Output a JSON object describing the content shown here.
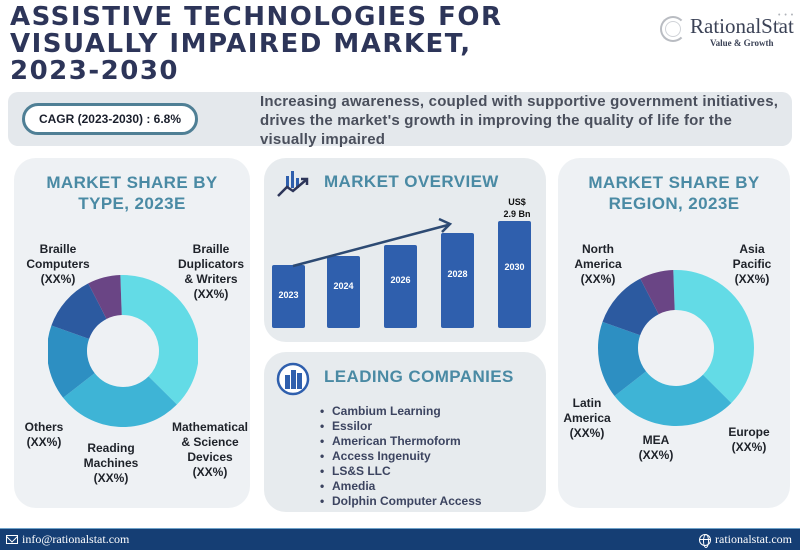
{
  "header": {
    "title_lines": [
      "ASSISTIVE TECHNOLOGIES FOR",
      "VISUALLY IMPAIRED MARKET,",
      "2023-2030"
    ]
  },
  "logo": {
    "name": "RationalStat",
    "tagline": "Value & Growth"
  },
  "cagr": {
    "label": "CAGR (2023-2030) : 6.8%",
    "description": "Increasing awareness, coupled with supportive government initiatives, drives the market's growth in improving the quality of life for the visually impaired"
  },
  "type_panel": {
    "title_lines": [
      "MARKET SHARE BY",
      "TYPE, 2023E"
    ],
    "segments": [
      {
        "label_lines": [
          "Braille",
          "Computers",
          "(XX%)"
        ],
        "color": "#63dbe6"
      },
      {
        "label_lines": [
          "Braille",
          "Duplicators",
          "& Writers",
          "(XX%)"
        ],
        "color": "#3eb4d6"
      },
      {
        "label_lines": [
          "Mathematical",
          "& Science",
          "Devices",
          "(XX%)"
        ],
        "color": "#2d8fc2"
      },
      {
        "label_lines": [
          "Reading",
          "Machines",
          "(XX%)"
        ],
        "color": "#2c5aa0"
      },
      {
        "label_lines": [
          "Others",
          "(XX%)"
        ],
        "color": "#6a4585"
      }
    ]
  },
  "overview_panel": {
    "title": "MARKET OVERVIEW",
    "value_lines": [
      "US$",
      "2.9 Bn"
    ],
    "bars": [
      {
        "year": "2023"
      },
      {
        "year": "2024"
      },
      {
        "year": "2026"
      },
      {
        "year": "2028"
      },
      {
        "year": "2030"
      }
    ],
    "bar_color": "#2f5fad"
  },
  "companies_panel": {
    "title": "LEADING COMPANIES",
    "items": [
      "Cambium Learning",
      "Essilor",
      "American Thermoform",
      "Access Ingenuity",
      "LS&S LLC",
      "Amedia",
      "Dolphin Computer Access"
    ]
  },
  "region_panel": {
    "title_lines": [
      "MARKET SHARE BY",
      "REGION, 2023E"
    ],
    "segments": [
      {
        "label_lines": [
          "North",
          "America",
          "(XX%)"
        ],
        "color": "#63dbe6"
      },
      {
        "label_lines": [
          "Asia",
          "Pacific",
          "(XX%)"
        ],
        "color": "#3eb4d6"
      },
      {
        "label_lines": [
          "Europe",
          "(XX%)"
        ],
        "color": "#2d8fc2"
      },
      {
        "label_lines": [
          "MEA",
          "(XX%)"
        ],
        "color": "#2c5aa0"
      },
      {
        "label_lines": [
          "Latin",
          "America",
          "(XX%)"
        ],
        "color": "#6a4585"
      }
    ]
  },
  "footer": {
    "email": "info@rationalstat.com",
    "website": "rationalstat.com"
  },
  "chart_data": [
    {
      "type": "pie",
      "title": "MARKET SHARE BY TYPE, 2023E",
      "categories": [
        "Braille Computers",
        "Braille Duplicators & Writers",
        "Mathematical & Science Devices",
        "Reading Machines",
        "Others"
      ],
      "values": [
        38,
        27,
        16,
        12,
        7
      ],
      "value_labels": [
        "XX%",
        "XX%",
        "XX%",
        "XX%",
        "XX%"
      ],
      "donut": true
    },
    {
      "type": "bar",
      "title": "MARKET OVERVIEW",
      "categories": [
        "2023",
        "2024",
        "2026",
        "2028",
        "2030"
      ],
      "values": [
        null,
        null,
        null,
        null,
        2.9
      ],
      "relative_heights": [
        0.59,
        0.67,
        0.76,
        0.86,
        1.0
      ],
      "annotations": [
        "US$ 2.9 Bn"
      ],
      "ylabel": "US$ Bn",
      "trend_arrow": true
    },
    {
      "type": "pie",
      "title": "MARKET SHARE BY REGION, 2023E",
      "categories": [
        "North America",
        "Asia Pacific",
        "Europe",
        "MEA",
        "Latin America"
      ],
      "values": [
        38,
        27,
        16,
        12,
        7
      ],
      "value_labels": [
        "XX%",
        "XX%",
        "XX%",
        "XX%",
        "XX%"
      ],
      "donut": true
    }
  ]
}
